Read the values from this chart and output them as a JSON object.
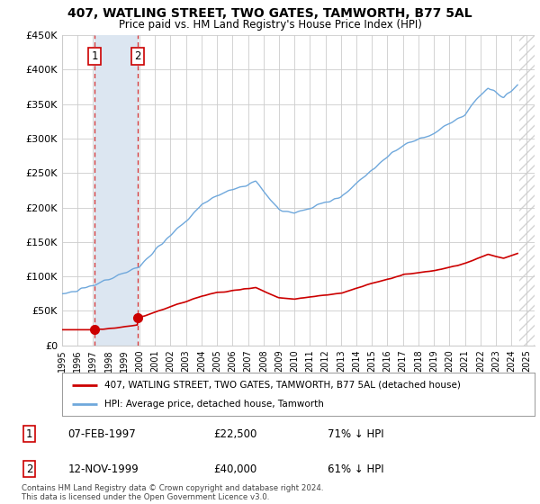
{
  "title": "407, WATLING STREET, TWO GATES, TAMWORTH, B77 5AL",
  "subtitle": "Price paid vs. HM Land Registry's House Price Index (HPI)",
  "legend_line1": "407, WATLING STREET, TWO GATES, TAMWORTH, B77 5AL (detached house)",
  "legend_line2": "HPI: Average price, detached house, Tamworth",
  "footer": "Contains HM Land Registry data © Crown copyright and database right 2024.\nThis data is licensed under the Open Government Licence v3.0.",
  "transaction1_date": "07-FEB-1997",
  "transaction1_price": "£22,500",
  "transaction1_hpi": "71% ↓ HPI",
  "transaction1_year": 1997.1,
  "transaction1_value": 22500,
  "transaction2_date": "12-NOV-1999",
  "transaction2_price": "£40,000",
  "transaction2_hpi": "61% ↓ HPI",
  "transaction2_year": 1999.87,
  "transaction2_value": 40000,
  "hpi_color": "#6fa8dc",
  "price_color": "#cc0000",
  "highlight_color": "#dce6f1",
  "background_color": "#ffffff",
  "grid_color": "#cccccc",
  "ylim": [
    0,
    450000
  ],
  "xlim_start": 1995,
  "xlim_end": 2025.5,
  "hatch_start": 2024.5,
  "yticks": [
    0,
    50000,
    100000,
    150000,
    200000,
    250000,
    300000,
    350000,
    400000,
    450000
  ],
  "ytick_labels": [
    "£0",
    "£50K",
    "£100K",
    "£150K",
    "£200K",
    "£250K",
    "£300K",
    "£350K",
    "£400K",
    "£450K"
  ]
}
